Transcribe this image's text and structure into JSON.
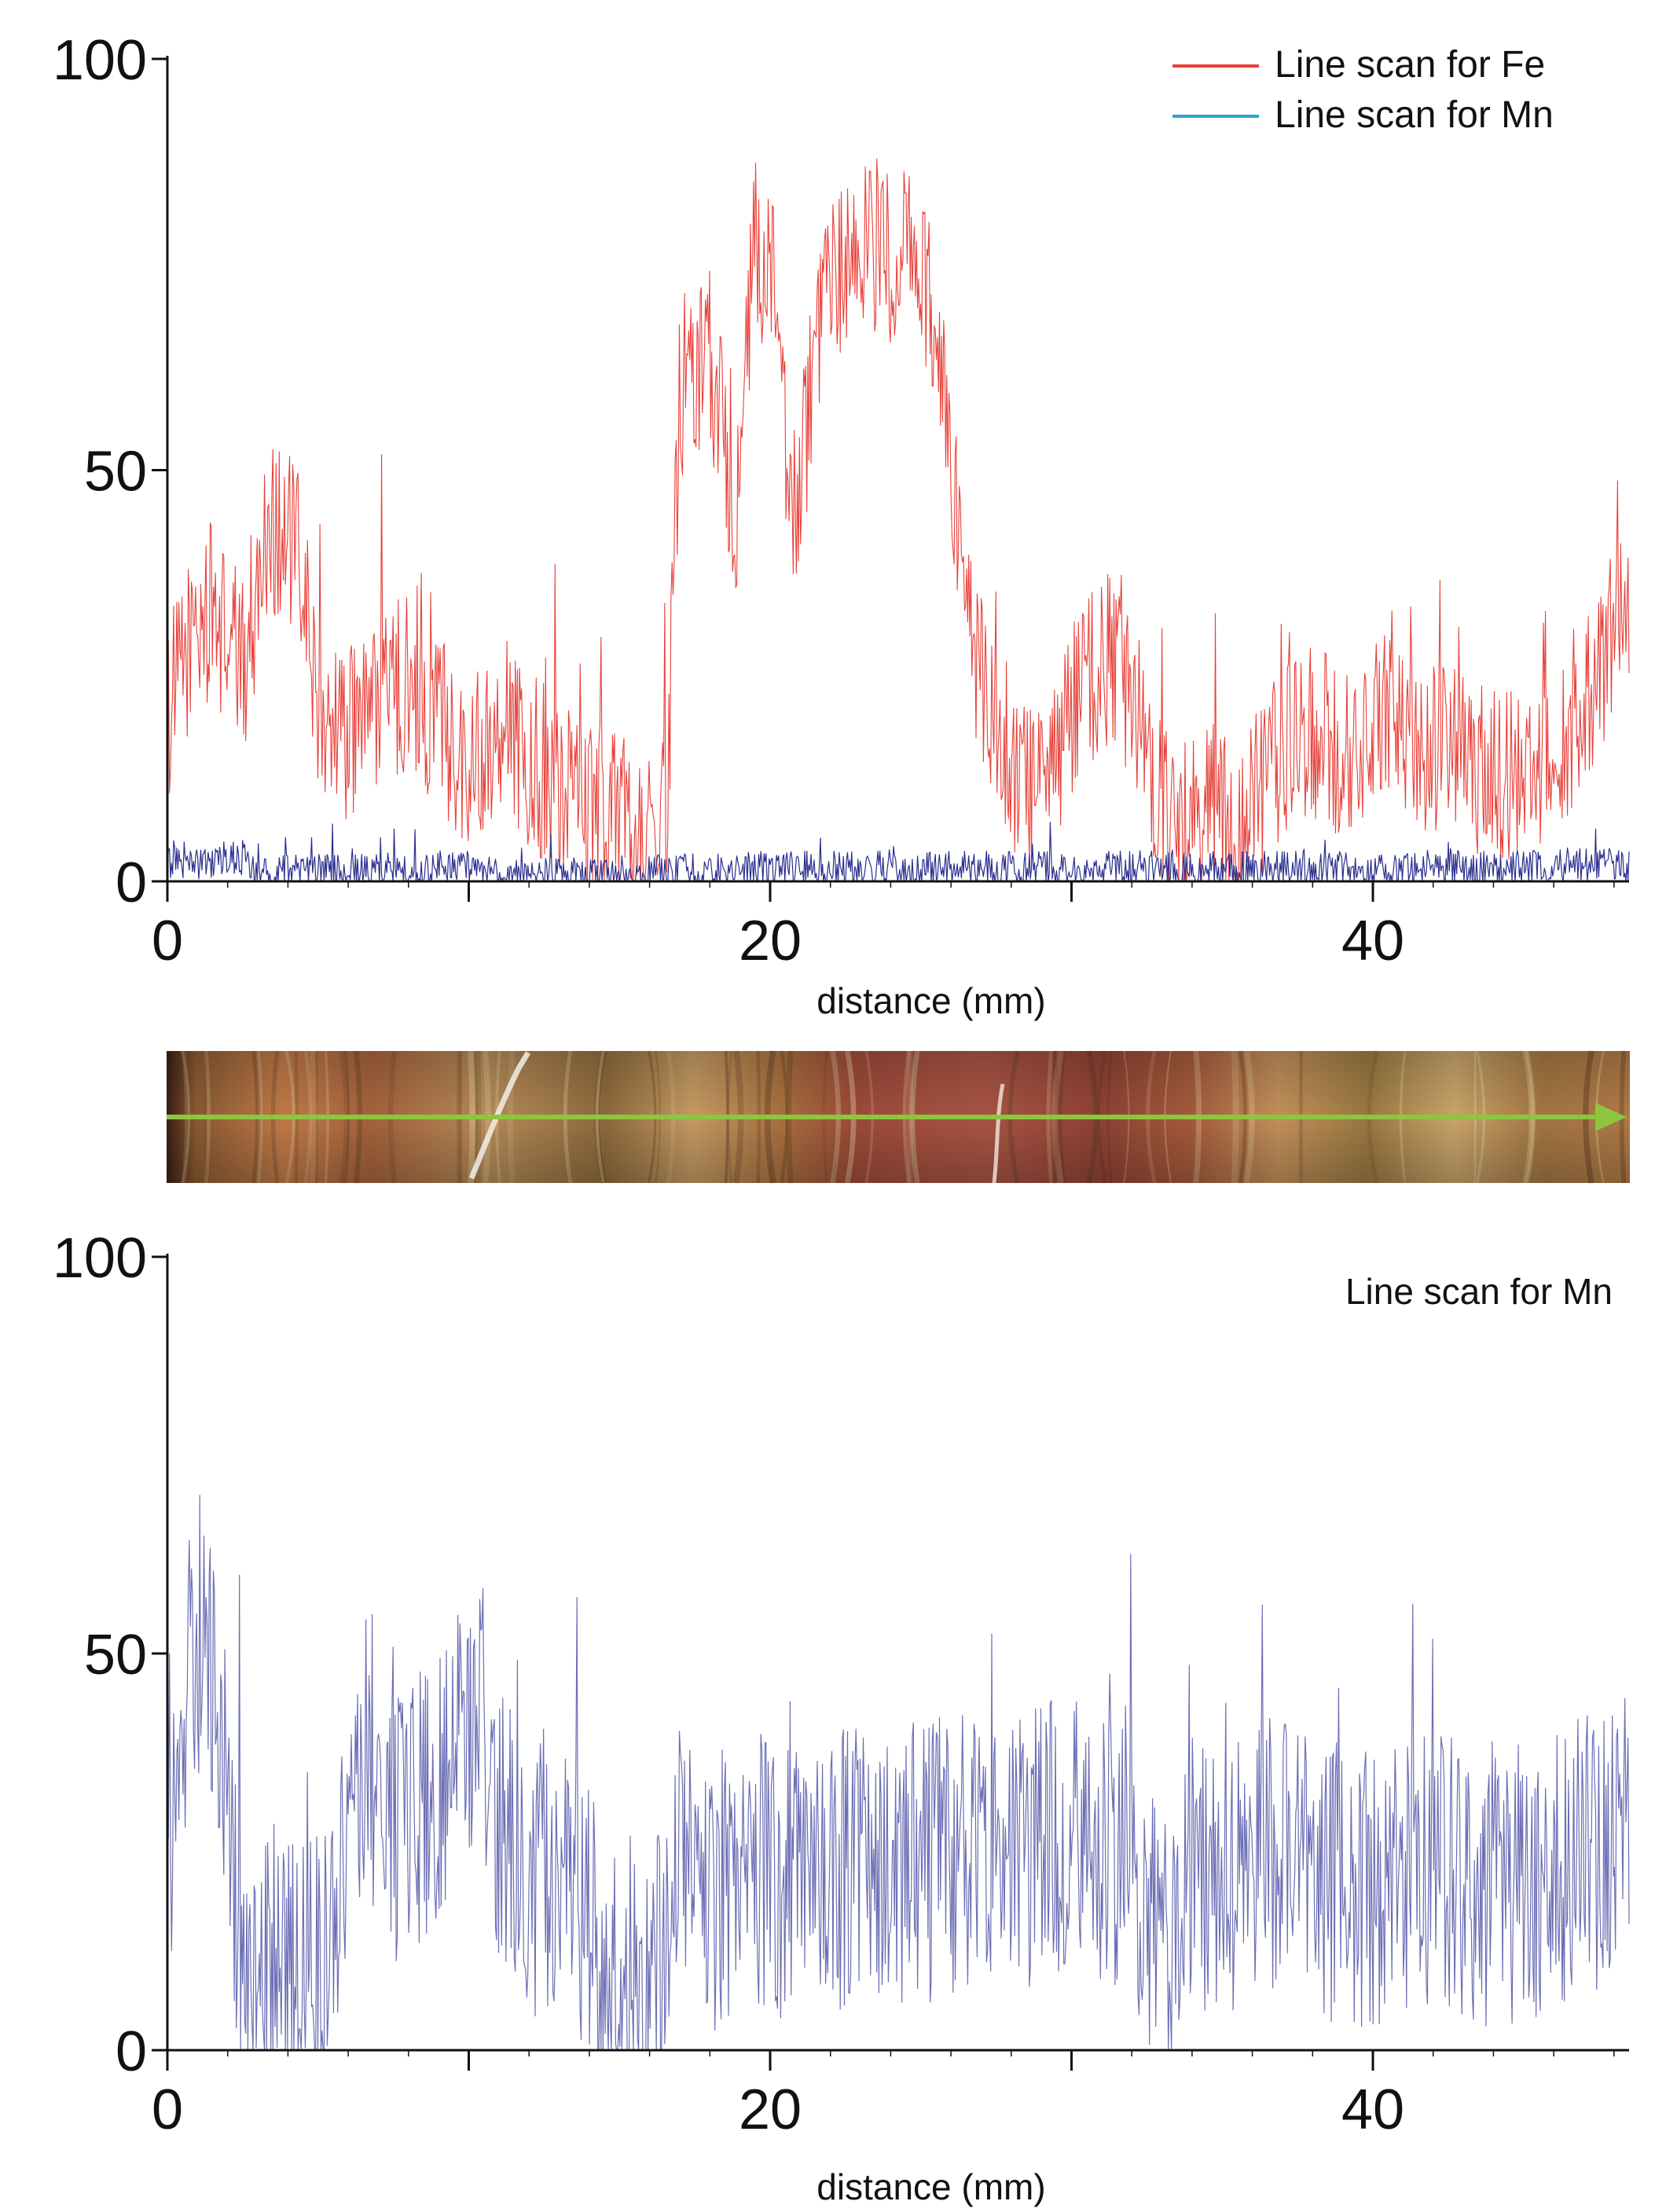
{
  "figure": {
    "description_label": "Elemental line scans across a banded mineral sample"
  },
  "colors": {
    "fe": "#e8413a",
    "mn_top": "#2a2f8f",
    "mn_legend": "#2aa6d6",
    "mn_bottom": "#3b3f9c",
    "axis": "#111111",
    "arrow": "#8cc63f"
  },
  "chart_data": [
    {
      "type": "line",
      "title": "",
      "xlabel": "distance (mm)",
      "ylabel": "",
      "xlim": [
        0,
        48.5
      ],
      "ylim": [
        0,
        100
      ],
      "x_ticks": [
        0,
        20,
        40
      ],
      "x_ticks_minor": [
        10,
        30
      ],
      "y_ticks": [
        0,
        50,
        100
      ],
      "legend_position": "top-right",
      "series": [
        {
          "name": "Line scan for Fe",
          "color_key": "fe",
          "profile": [
            [
              0,
              20
            ],
            [
              0.8,
              30
            ],
            [
              1.5,
              33
            ],
            [
              2.5,
              26
            ],
            [
              3.4,
              44
            ],
            [
              4.3,
              40
            ],
            [
              5,
              22
            ],
            [
              6,
              18
            ],
            [
              7,
              22
            ],
            [
              8,
              24
            ],
            [
              9,
              20
            ],
            [
              10,
              14
            ],
            [
              11,
              20
            ],
            [
              12,
              15
            ],
            [
              13,
              12
            ],
            [
              14,
              9
            ],
            [
              15,
              8
            ],
            [
              16,
              5
            ],
            [
              16.6,
              10
            ],
            [
              17,
              60
            ],
            [
              18,
              64
            ],
            [
              18.9,
              45
            ],
            [
              19.5,
              78
            ],
            [
              20.2,
              70
            ],
            [
              20.7,
              42
            ],
            [
              21.3,
              58
            ],
            [
              22,
              72
            ],
            [
              23,
              78
            ],
            [
              24,
              76
            ],
            [
              25,
              76
            ],
            [
              25.8,
              60
            ],
            [
              26.5,
              30
            ],
            [
              27.5,
              18
            ],
            [
              28.5,
              12
            ],
            [
              29.5,
              15
            ],
            [
              30.2,
              22
            ],
            [
              31,
              26
            ],
            [
              31.6,
              27
            ],
            [
              32.5,
              15
            ],
            [
              33.5,
              5
            ],
            [
              34.5,
              9
            ],
            [
              35.5,
              5
            ],
            [
              36.5,
              12
            ],
            [
              37.5,
              18
            ],
            [
              38.5,
              17
            ],
            [
              39.5,
              16
            ],
            [
              40.5,
              20
            ],
            [
              41.5,
              15
            ],
            [
              42.5,
              16
            ],
            [
              43.5,
              14
            ],
            [
              44.5,
              13
            ],
            [
              45.5,
              15
            ],
            [
              46.5,
              17
            ],
            [
              47.5,
              25
            ],
            [
              48.5,
              35
            ]
          ],
          "noise_amplitude": 11,
          "points": 1400
        },
        {
          "name": "Line scan for Mn",
          "color_key": "mn_top",
          "legend_color_key": "mn_legend",
          "profile": [
            [
              0,
              2
            ],
            [
              2.5,
              3
            ],
            [
              3,
              1
            ],
            [
              10,
              1.5
            ],
            [
              11,
              0.5
            ],
            [
              16,
              1
            ],
            [
              20,
              1.5
            ],
            [
              30,
              1.5
            ],
            [
              40,
              1.5
            ],
            [
              48.5,
              2
            ]
          ],
          "noise_amplitude": 2.2,
          "points": 1400
        }
      ]
    },
    {
      "type": "line",
      "title": "",
      "xlabel": "distance (mm)",
      "ylabel": "",
      "xlim": [
        0,
        48.5
      ],
      "ylim": [
        0,
        100
      ],
      "x_ticks": [
        0,
        20,
        40
      ],
      "x_ticks_minor": [
        10,
        30
      ],
      "y_ticks": [
        0,
        50,
        100
      ],
      "legend_position": "top-right",
      "series": [
        {
          "name": "Line scan for Mn",
          "color_key": "mn_bottom",
          "profile": [
            [
              0,
              25
            ],
            [
              0.6,
              45
            ],
            [
              1.2,
              55
            ],
            [
              2,
              30
            ],
            [
              2.5,
              12
            ],
            [
              3.5,
              8
            ],
            [
              4.5,
              8
            ],
            [
              5.2,
              12
            ],
            [
              5.8,
              25
            ],
            [
              6.5,
              30
            ],
            [
              7.5,
              28
            ],
            [
              8.5,
              32
            ],
            [
              9.5,
              35
            ],
            [
              10.3,
              45
            ],
            [
              11,
              30
            ],
            [
              12,
              22
            ],
            [
              13,
              22
            ],
            [
              14,
              15
            ],
            [
              15,
              6
            ],
            [
              16,
              6
            ],
            [
              17,
              20
            ],
            [
              18,
              20
            ],
            [
              19,
              22
            ],
            [
              20,
              22
            ],
            [
              22,
              22
            ],
            [
              24,
              24
            ],
            [
              26,
              24
            ],
            [
              28,
              25
            ],
            [
              30,
              28
            ],
            [
              31,
              26
            ],
            [
              32,
              24
            ],
            [
              33,
              12
            ],
            [
              34,
              22
            ],
            [
              36,
              22
            ],
            [
              37,
              26
            ],
            [
              38,
              22
            ],
            [
              40,
              20
            ],
            [
              42,
              22
            ],
            [
              44,
              20
            ],
            [
              46,
              22
            ],
            [
              48.5,
              28
            ]
          ],
          "noise_amplitude": 18,
          "points": 1400
        }
      ]
    }
  ]
}
